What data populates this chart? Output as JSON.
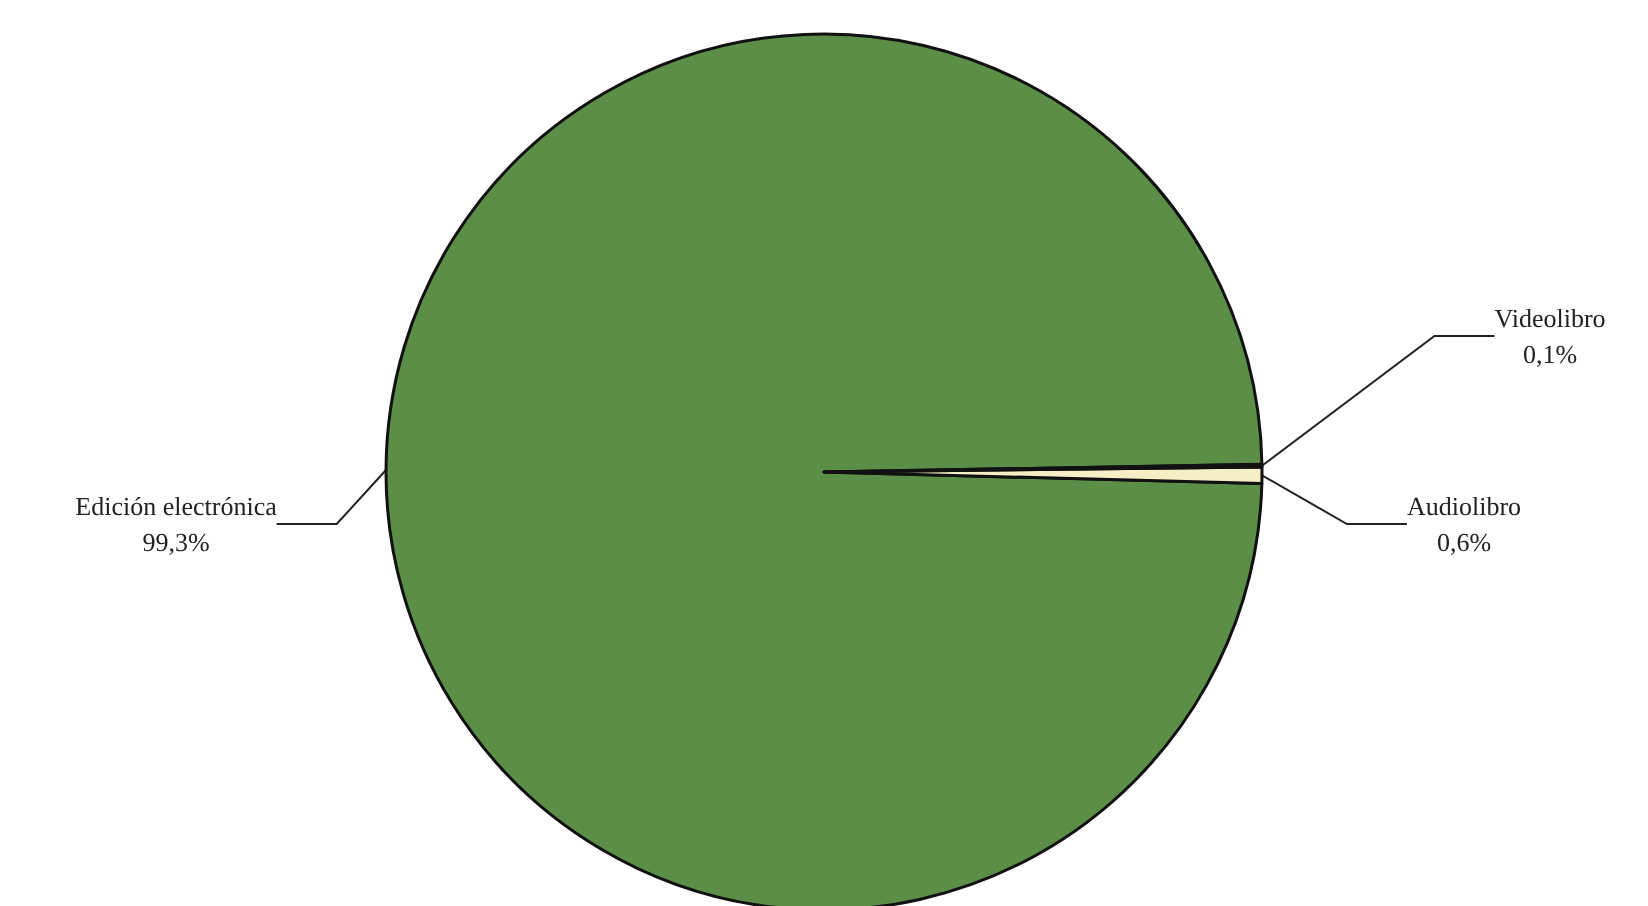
{
  "chart_data": {
    "type": "pie",
    "categories": [
      "Edición electrónica",
      "Audiolibro",
      "Videolibro"
    ],
    "values": [
      99.3,
      0.6,
      0.1
    ],
    "colors": [
      "#5b8f48",
      "#f6efc6",
      "#1c2a1c"
    ],
    "value_labels": [
      "99,3%",
      "0,6%",
      "0,1%"
    ]
  }
}
